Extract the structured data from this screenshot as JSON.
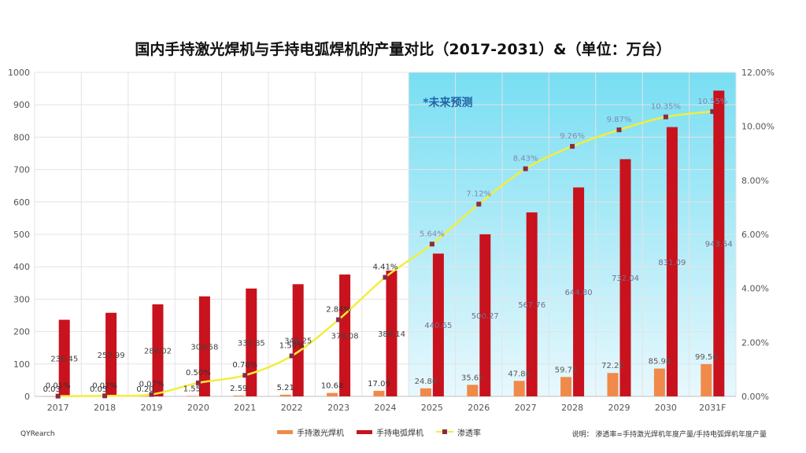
{
  "title": "国内手持激光焊机与手持电弧焊机的产量对比（2017-2031）&（单位：万台）",
  "forecast_label": "*未来预测",
  "source": "QYRearch",
  "note": "说明：  渗透率=手持激光焊机年度产量/手持电弧焊机年度产量",
  "colors": {
    "laser": "#f08a4b",
    "arc": "#c8121d",
    "rate_line": "#f2ee3c",
    "rate_marker": "#8a2a44",
    "forecast_bg_top": "#78def2",
    "forecast_bg_bottom": "#e8f8fd"
  },
  "chart_data": {
    "type": "bar",
    "title": "国内手持激光焊机与手持电弧焊机的产量对比（2017-2031）&（单位：万台）",
    "categories": [
      "2017",
      "2018",
      "2019",
      "2020",
      "2021",
      "2022",
      "2023",
      "2024",
      "2025",
      "2026",
      "2027",
      "2028",
      "2029",
      "2030",
      "2031F"
    ],
    "series": [
      {
        "name": "手持激光焊机",
        "type": "bar",
        "axis": "left",
        "values": [
          0.03,
          0.05,
          0.2,
          1.55,
          2.59,
          5.21,
          10.68,
          17.09,
          24.86,
          35.62,
          47.86,
          59.73,
          72.22,
          85.98,
          99.56
        ],
        "labels": [
          "0.03",
          "0.05",
          "0.20",
          "1.55",
          "2.59",
          "5.21",
          "10.68",
          "17.09",
          "24.86",
          "35.62",
          "47.86",
          "59.73",
          "72.22",
          "85.98",
          "99.56"
        ]
      },
      {
        "name": "手持电弧焊机",
        "type": "bar",
        "axis": "left",
        "values": [
          236.45,
          257.99,
          284.02,
          308.58,
          332.85,
          346.25,
          376.08,
          388.14,
          440.65,
          500.27,
          567.76,
          644.8,
          732.04,
          831.09,
          943.54
        ],
        "labels": [
          "236.45",
          "257.99",
          "284.02",
          "308.58",
          "332.85",
          "346.25",
          "376.08",
          "388.14",
          "440.65",
          "500.27",
          "567.76",
          "644.80",
          "732.04",
          "831.09",
          "943.54"
        ]
      },
      {
        "name": "渗透率",
        "type": "line",
        "axis": "right",
        "values": [
          0.01,
          0.02,
          0.07,
          0.5,
          0.78,
          1.5,
          2.84,
          4.41,
          5.64,
          7.12,
          8.43,
          9.26,
          9.87,
          10.35,
          10.55
        ],
        "labels": [
          "0.01%",
          "0.02%",
          "0.07%",
          "0.50%",
          "0.78%",
          "1.50%",
          "2.84%",
          "4.41%",
          "5.64%",
          "7.12%",
          "8.43%",
          "9.26%",
          "9.87%",
          "10.35%",
          "10.55%"
        ]
      }
    ],
    "y_left": {
      "min": 0,
      "max": 1000,
      "ticks": [
        0,
        100,
        200,
        300,
        400,
        500,
        600,
        700,
        800,
        900,
        1000
      ]
    },
    "y_right": {
      "min": 0,
      "max": 12,
      "ticks": [
        0,
        2,
        4,
        6,
        8,
        10,
        12
      ],
      "tick_labels": [
        "0.00%",
        "2.00%",
        "4.00%",
        "6.00%",
        "8.00%",
        "10.00%",
        "12.00%"
      ]
    },
    "forecast_from": "2025",
    "grid": true,
    "legend": "bottom"
  }
}
